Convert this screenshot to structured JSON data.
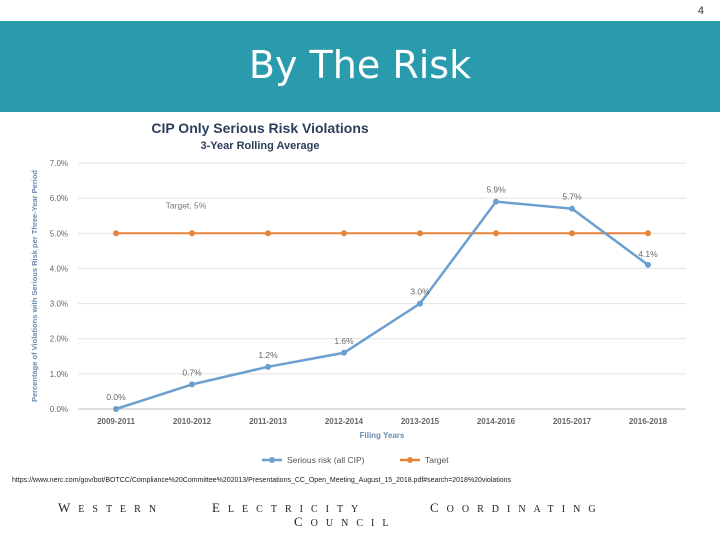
{
  "slide": {
    "page_number": "4",
    "title": "By The Risk",
    "source_url": "https://www.nerc.com/gov/bot/BOTCC/Compliance%20Committee%202013/Presentations_CC_Open_Meeting_August_15_2018.pdf#search=2018%20violations",
    "footer": {
      "w1_cap": "W",
      "w1_rest": "ESTERN",
      "w2_cap": "E",
      "w2_rest": "LECTRICITY",
      "w3_cap": "C",
      "w3_rest": "OORDINATING",
      "w4_cap": "C",
      "w4_rest": "OUNCIL"
    }
  },
  "chart_data": {
    "type": "line",
    "title": "CIP Only Serious Risk Violations",
    "subtitle": "3-Year Rolling Average",
    "xlabel": "Filing Years",
    "ylabel": "Percentage of Violations with Serious Risk per Three-Year Period",
    "categories": [
      "2009-2011",
      "2010-2012",
      "2011-2013",
      "2012-2014",
      "2013-2015",
      "2014-2016",
      "2015-2017",
      "2016-2018"
    ],
    "ylim": [
      0,
      7.0
    ],
    "yticks": [
      "0.0%",
      "1.0%",
      "2.0%",
      "3.0%",
      "4.0%",
      "5.0%",
      "6.0%",
      "7.0%"
    ],
    "grid": true,
    "legend_position": "bottom",
    "series": [
      {
        "name": "Serious risk (all CIP)",
        "color": "#6a9fd0",
        "values": [
          0.0,
          0.7,
          1.2,
          1.6,
          3.0,
          5.9,
          5.7,
          4.1
        ],
        "labels": [
          "0.0%",
          "0.7%",
          "1.2%",
          "1.6%",
          "3.0%",
          "5.9%",
          "5.7%",
          "4.1%"
        ]
      },
      {
        "name": "Target",
        "color": "#e8843a",
        "values": [
          5,
          5,
          5,
          5,
          5,
          5,
          5,
          5
        ],
        "annotation": "Target, 5%"
      }
    ],
    "title_color": "#2c3e5c",
    "text_color": "#6a8ab0"
  }
}
